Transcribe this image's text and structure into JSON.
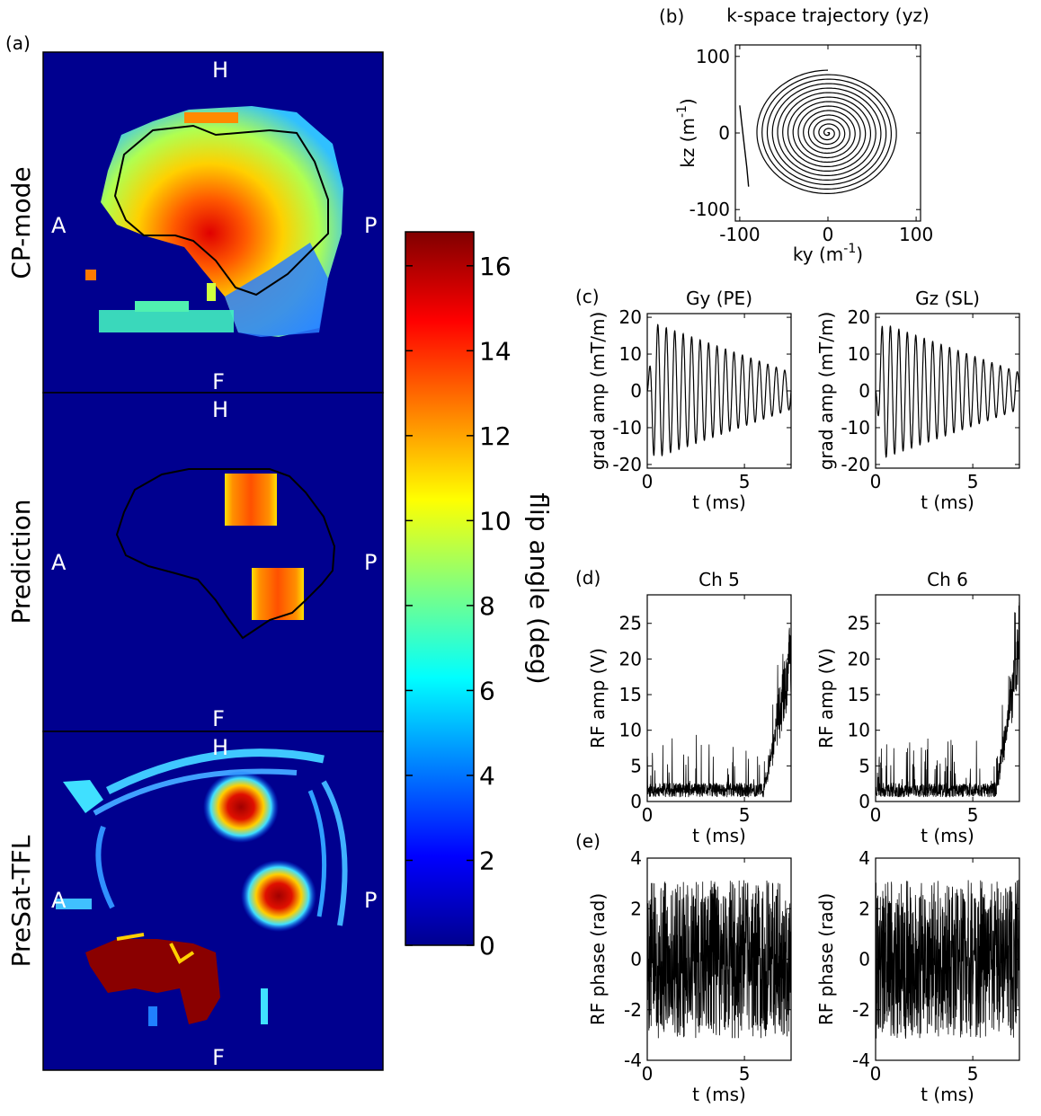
{
  "panel_a": {
    "label": "(a)",
    "orientation": {
      "top": "H",
      "bottom": "F",
      "left": "A",
      "right": "P"
    },
    "rows": [
      "CP-mode",
      "Prediction",
      "PreSat-TFL"
    ]
  },
  "colorbar": {
    "label": "flip angle (deg)",
    "ticks": [
      "0",
      "2",
      "4",
      "6",
      "8",
      "10",
      "12",
      "14",
      "16"
    ],
    "range": [
      0,
      16.8
    ]
  },
  "chart_data": [
    {
      "id": "b",
      "type": "line",
      "panel_label": "(b)",
      "title": "k-space trajectory (yz)",
      "xlabel": "ky (m",
      "ylabel": "kz (m",
      "unit_exp": "-1",
      "unit_close": ")",
      "xlim": [
        -105,
        105
      ],
      "ylim": [
        -115,
        115
      ],
      "xticks": [
        -100,
        0,
        100
      ],
      "yticks": [
        -100,
        0,
        100
      ],
      "spiral": {
        "turns": 14,
        "max_radius": 82,
        "lead_in": {
          "ky": [
            -100,
            -98,
            -95,
            -92,
            -90
          ],
          "kz": [
            36,
            15,
            -15,
            -45,
            -70
          ]
        }
      }
    },
    {
      "id": "c1",
      "type": "line",
      "panel_label": "(c)",
      "title": "Gy (PE)",
      "xlabel": "t (ms)",
      "ylabel": "grad amp (mT/m)",
      "xlim": [
        0,
        7.4
      ],
      "ylim": [
        -21,
        21
      ],
      "xticks": [
        0,
        5
      ],
      "yticks": [
        -20,
        -10,
        0,
        10,
        20
      ],
      "signal": {
        "form": "sine",
        "cycles": 17,
        "peak_amp": 19,
        "end_amp": 5,
        "phase": 0
      }
    },
    {
      "id": "c2",
      "type": "line",
      "panel_label": "",
      "title": "Gz (SL)",
      "xlabel": "t (ms)",
      "ylabel": "grad amp (mT/m)",
      "xlim": [
        0,
        7.4
      ],
      "ylim": [
        -21,
        21
      ],
      "xticks": [
        0,
        5
      ],
      "yticks": [
        -20,
        -10,
        0,
        10,
        20
      ],
      "signal": {
        "form": "sine",
        "cycles": 17,
        "peak_amp": 19,
        "end_amp": 5,
        "phase": 3.1416
      }
    },
    {
      "id": "d1",
      "type": "line",
      "panel_label": "(d)",
      "title": "Ch 5",
      "xlabel": "t (ms)",
      "ylabel": "RF amp (V)",
      "xlim": [
        0,
        7.4
      ],
      "ylim": [
        0,
        29
      ],
      "xticks": [
        0,
        5
      ],
      "yticks": [
        0,
        5,
        10,
        15,
        20,
        25
      ],
      "signal": {
        "form": "rf_amp",
        "baseline": 2,
        "rise_start_ms": 6.0,
        "peak": 24,
        "seed": 11
      }
    },
    {
      "id": "d2",
      "type": "line",
      "panel_label": "",
      "title": "Ch 6",
      "xlabel": "t (ms)",
      "ylabel": "RF amp (V)",
      "xlim": [
        0,
        7.4
      ],
      "ylim": [
        0,
        29
      ],
      "xticks": [
        0,
        5
      ],
      "yticks": [
        0,
        5,
        10,
        15,
        20,
        25
      ],
      "signal": {
        "form": "rf_amp",
        "baseline": 2,
        "rise_start_ms": 6.2,
        "peak": 26.5,
        "seed": 23
      }
    },
    {
      "id": "e1",
      "type": "line",
      "panel_label": "(e)",
      "title": "",
      "xlabel": "t (ms)",
      "ylabel": "RF phase (rad)",
      "xlim": [
        0,
        7.4
      ],
      "ylim": [
        -4,
        4
      ],
      "xticks": [
        0,
        5
      ],
      "yticks": [
        -4,
        -2,
        0,
        2,
        4
      ],
      "signal": {
        "form": "phase",
        "limit": 3.14,
        "seed": 5
      }
    },
    {
      "id": "e2",
      "type": "line",
      "panel_label": "",
      "title": "",
      "xlabel": "t (ms)",
      "ylabel": "RF phase (rad)",
      "xlim": [
        0,
        7.4
      ],
      "ylim": [
        -4,
        4
      ],
      "xticks": [
        0,
        5
      ],
      "yticks": [
        -4,
        -2,
        0,
        2,
        4
      ],
      "signal": {
        "form": "phase",
        "limit": 3.14,
        "seed": 9
      }
    }
  ]
}
